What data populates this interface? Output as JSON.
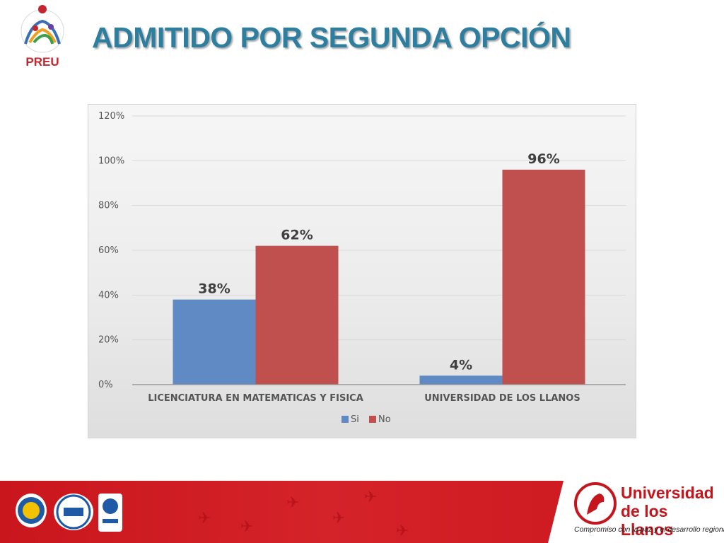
{
  "header": {
    "logo_text": "PREU",
    "title": "ADMITIDO POR SEGUNDA OPCIÓN"
  },
  "colors": {
    "title": "#2e7ea0",
    "series_si": "#5f8ac4",
    "series_no": "#c0504d",
    "footer_red": "#d01c22"
  },
  "chart_data": {
    "type": "bar",
    "categories": [
      "LICENCIATURA EN MATEMATICAS Y FISICA",
      "UNIVERSIDAD DE LOS LLANOS"
    ],
    "series": [
      {
        "name": "Si",
        "values": [
          38,
          4
        ],
        "labels": [
          "38%",
          "4%"
        ],
        "color": "#5f8ac4"
      },
      {
        "name": "No",
        "values": [
          62,
          96
        ],
        "labels": [
          "62%",
          "96%"
        ],
        "color": "#c0504d"
      }
    ],
    "y_ticks": [
      "0%",
      "20%",
      "40%",
      "60%",
      "80%",
      "100%",
      "120%"
    ],
    "ylim": [
      0,
      120
    ],
    "grid": true,
    "legend": "bottom-center",
    "title": "",
    "xlabel": "",
    "ylabel": ""
  },
  "footer": {
    "certifications": [
      "acreditacion-seal",
      "iqnet-certified",
      "iso-9001"
    ],
    "university_name_line1": "Universidad",
    "university_name_line2": "de los Llanos",
    "university_tagline": "Compromiso con la paz y el desarrollo regional"
  }
}
